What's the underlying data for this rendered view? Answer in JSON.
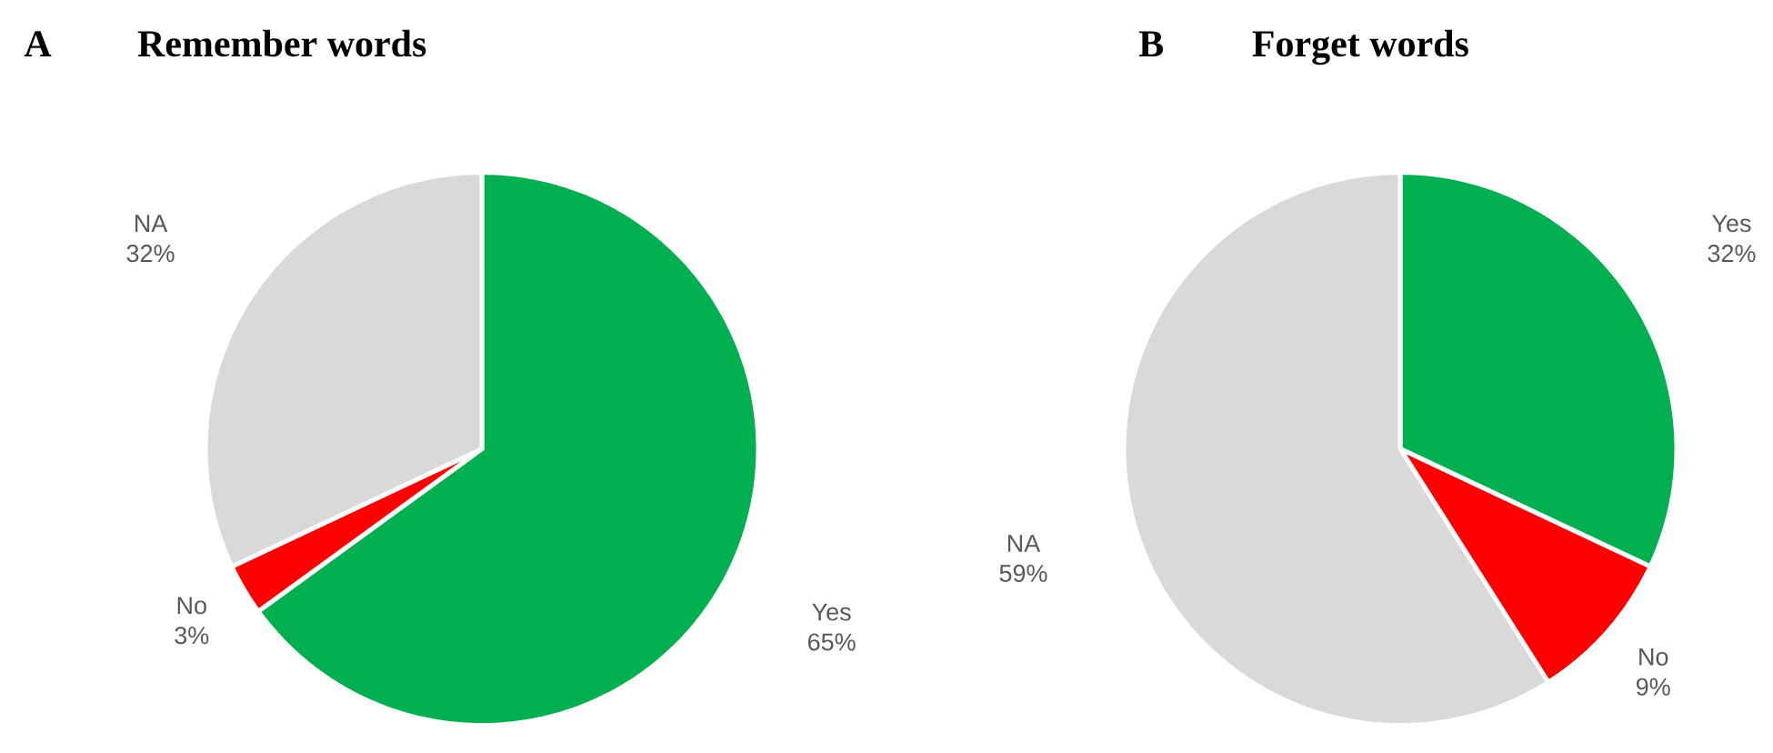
{
  "chart_data": [
    {
      "type": "pie",
      "title": "Remember words",
      "annotations": [
        "A"
      ],
      "categories": [
        "Yes",
        "No",
        "NA"
      ],
      "values": [
        65,
        3,
        32
      ],
      "value_labels": [
        "65%",
        "3%",
        "32%"
      ],
      "colors": [
        "#00b050",
        "#ff0000",
        "#d9d9d9"
      ]
    },
    {
      "type": "pie",
      "title": "Forget words",
      "annotations": [
        "B"
      ],
      "categories": [
        "Yes",
        "No",
        "NA"
      ],
      "values": [
        32,
        9,
        59
      ],
      "value_labels": [
        "32%",
        "9%",
        "59%"
      ],
      "colors": [
        "#00b050",
        "#ff0000",
        "#d9d9d9"
      ]
    }
  ]
}
